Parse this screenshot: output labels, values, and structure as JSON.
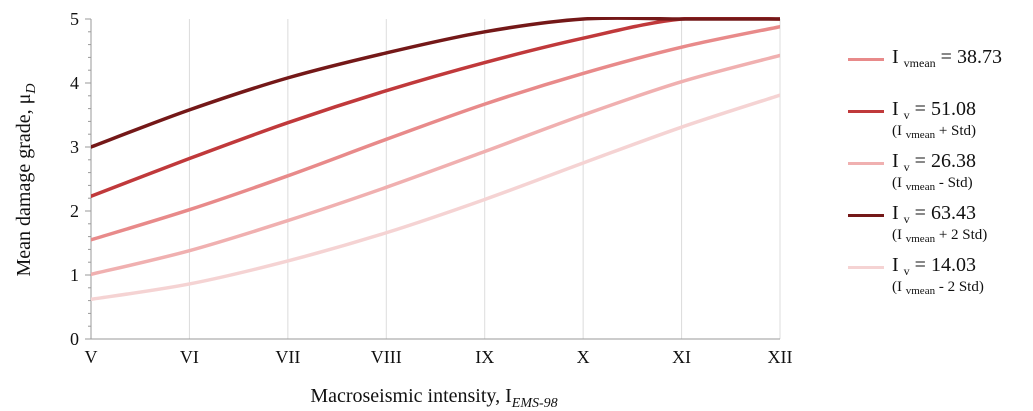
{
  "chart_data": {
    "type": "line",
    "x_tick_labels": [
      "V",
      "VI",
      "VII",
      "VIII",
      "IX",
      "X",
      "XI",
      "XII"
    ],
    "x_values": [
      5,
      6,
      7,
      8,
      9,
      10,
      11,
      12
    ],
    "xlim": [
      5,
      12
    ],
    "ylim": [
      0,
      5
    ],
    "y_ticks": [
      0,
      1,
      2,
      3,
      4,
      5
    ],
    "xlabel": "Macroseismic intensity, I",
    "xlabel_subscript": "EMS-98",
    "ylabel": "Mean damage grade, μ",
    "ylabel_subscript": "D",
    "grid": {
      "x": true,
      "y": false
    },
    "legend_position": "right",
    "series": [
      {
        "name": "I vmean = 38.73",
        "color": "#e88a8a",
        "values": [
          1.55,
          2.02,
          2.55,
          3.12,
          3.67,
          4.15,
          4.56,
          4.88
        ]
      },
      {
        "name": "I v = 51.08 (I vmean + Std)",
        "color": "#c0393b",
        "values": [
          2.23,
          2.82,
          3.38,
          3.88,
          4.32,
          4.7,
          5.0,
          5.0
        ]
      },
      {
        "name": "I v = 26.38 (I vmean - Std)",
        "color": "#f0b0b0",
        "values": [
          1.01,
          1.38,
          1.85,
          2.37,
          2.93,
          3.5,
          4.02,
          4.43
        ]
      },
      {
        "name": "I v = 63.43 (I vmean + 2 Std)",
        "color": "#741818",
        "values": [
          3.0,
          3.58,
          4.08,
          4.47,
          4.8,
          5.0,
          5.0,
          5.0
        ]
      },
      {
        "name": "I v = 14.03 (I vmean - 2 Std)",
        "color": "#f5d3d3",
        "values": [
          0.62,
          0.86,
          1.22,
          1.66,
          2.18,
          2.75,
          3.31,
          3.81
        ]
      }
    ]
  },
  "legend": [
    {
      "prefix": "I ",
      "sub": "vmean",
      "suffix": " =  38.73",
      "note_prefix": "",
      "note_sub": "",
      "note_suffix": ""
    },
    {
      "prefix": "I ",
      "sub": "v",
      "suffix": " =  51.08",
      "note_prefix": "(I ",
      "note_sub": "vmean",
      "note_suffix": " + Std)"
    },
    {
      "prefix": "I ",
      "sub": "v",
      "suffix": " =  26.38",
      "note_prefix": "(I ",
      "note_sub": "vmean",
      "note_suffix": " - Std)"
    },
    {
      "prefix": "I ",
      "sub": "v",
      "suffix": " =  63.43",
      "note_prefix": "(I ",
      "note_sub": "vmean",
      "note_suffix": " + 2 Std)"
    },
    {
      "prefix": "I ",
      "sub": "v",
      "suffix": " =  14.03",
      "note_prefix": "(I ",
      "note_sub": "vmean",
      "note_suffix": " - 2 Std)"
    }
  ]
}
